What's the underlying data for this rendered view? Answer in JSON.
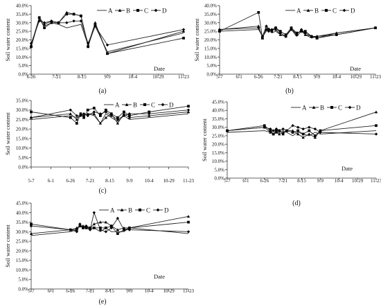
{
  "chart_data": [
    {
      "panel_label": "(a)",
      "type": "line",
      "ylabel": "Soil water content",
      "xlabel": "Date",
      "yticks": [
        "0.0%",
        "5.0%",
        "10.0%",
        "15.0%",
        "20.0%",
        "25.0%",
        "30.0%",
        "35.0%",
        "40.0%"
      ],
      "ylim": [
        0,
        40
      ],
      "x_tick_labels": [
        "6-26",
        "7-21",
        "8-15",
        "9-9",
        "10-4",
        "10-29",
        "11-23"
      ],
      "x_tick_days": [
        0,
        25,
        50,
        75,
        100,
        125,
        150
      ],
      "legend": [
        "A",
        "B",
        "C",
        "D"
      ],
      "series": [
        {
          "name": "A",
          "marker": "none",
          "x": [
            0,
            8,
            13,
            20,
            27,
            35,
            42,
            49,
            56,
            63,
            75,
            150
          ],
          "y": [
            16,
            32,
            28,
            30,
            29,
            27,
            28,
            29,
            17,
            28,
            13,
            24
          ]
        },
        {
          "name": "B",
          "marker": "triangle",
          "x": [
            0,
            8,
            13,
            20,
            27,
            35,
            42,
            49,
            56,
            63,
            75,
            150
          ],
          "y": [
            17,
            33,
            29,
            31,
            30,
            36,
            35,
            34,
            17,
            30,
            12,
            25
          ]
        },
        {
          "name": "C",
          "marker": "square",
          "x": [
            0,
            8,
            13,
            20,
            27,
            35,
            42,
            49,
            56,
            63,
            75,
            150
          ],
          "y": [
            16,
            33,
            27,
            30,
            30,
            35,
            35,
            34,
            16,
            29,
            12,
            21
          ]
        },
        {
          "name": "D",
          "marker": "diamond",
          "x": [
            0,
            8,
            13,
            20,
            27,
            35,
            42,
            49,
            56,
            63,
            75,
            150
          ],
          "y": [
            18,
            31,
            30,
            31,
            30,
            30,
            31,
            31,
            18,
            28,
            17,
            26
          ]
        }
      ]
    },
    {
      "panel_label": "(b)",
      "type": "line",
      "ylabel": "Soil water content",
      "xlabel": "Date",
      "yticks": [
        "0.0%",
        "5.0%",
        "10.0%",
        "15.0%",
        "20.0%",
        "25.0%",
        "30.0%",
        "35.0%",
        "40.0%"
      ],
      "ylim": [
        0,
        40
      ],
      "x_tick_labels": [
        "5-7",
        "6-1",
        "6-26",
        "7-21",
        "8-15",
        "9-9",
        "10-4",
        "10-29",
        "11-23"
      ],
      "x_tick_days": [
        0,
        25,
        50,
        75,
        100,
        125,
        150,
        175,
        200
      ],
      "legend": [
        "A",
        "B",
        "C",
        "D"
      ],
      "series": [
        {
          "name": "A",
          "marker": "none",
          "x": [
            0,
            50,
            55,
            60,
            63,
            67,
            72,
            78,
            85,
            92,
            99,
            105,
            110,
            118,
            125,
            150,
            200
          ],
          "y": [
            25,
            26,
            22,
            25,
            27,
            24,
            25,
            23,
            22,
            26,
            22,
            25,
            23,
            21,
            22,
            24,
            27
          ]
        },
        {
          "name": "B",
          "marker": "triangle",
          "x": [
            0,
            50,
            55,
            60,
            63,
            67,
            72,
            78,
            85,
            92,
            99,
            105,
            110,
            118,
            125,
            150,
            200
          ],
          "y": [
            26,
            28,
            21,
            28,
            26,
            26,
            26,
            23,
            22,
            27,
            23,
            26,
            23,
            22,
            21,
            24,
            27
          ]
        },
        {
          "name": "C",
          "marker": "square",
          "x": [
            0,
            50,
            55,
            60,
            63,
            67,
            72,
            78,
            85,
            92,
            99,
            105,
            110,
            118,
            125,
            150,
            200
          ],
          "y": [
            25,
            36,
            21,
            26,
            26,
            25,
            27,
            25,
            23,
            27,
            24,
            25,
            25,
            22,
            21,
            23,
            27
          ]
        },
        {
          "name": "D",
          "marker": "diamond",
          "x": [
            0,
            50,
            55,
            60,
            63,
            67,
            72,
            78,
            85,
            92,
            99,
            105,
            110,
            118,
            125,
            150,
            200
          ],
          "y": [
            26,
            27,
            22,
            28,
            25,
            26,
            27,
            24,
            22,
            26,
            23,
            26,
            24,
            22,
            22,
            23,
            27
          ]
        }
      ]
    },
    {
      "panel_label": "(c)",
      "type": "line",
      "ylabel": "Soil water content",
      "xlabel": "",
      "yticks": [
        "0.0%",
        "5.0%",
        "10.0%",
        "15.0%",
        "20.0%",
        "25.0%",
        "30.0%",
        "35.0%"
      ],
      "ylim": [
        0,
        35
      ],
      "x_tick_labels": [
        "5-7",
        "6-1",
        "6-26",
        "7-21",
        "8-15",
        "9-9",
        "10-4",
        "10-29",
        "11-23"
      ],
      "x_tick_days": [
        0,
        25,
        50,
        75,
        100,
        125,
        150,
        175,
        200
      ],
      "legend": [
        "A",
        "B",
        "C",
        "D"
      ],
      "series": [
        {
          "name": "A",
          "marker": "none",
          "x": [
            0,
            50,
            58,
            63,
            67,
            72,
            80,
            88,
            95,
            102,
            110,
            118,
            125,
            150,
            200
          ],
          "y": [
            25,
            27,
            26,
            27,
            27,
            28,
            27,
            23,
            28,
            26,
            24,
            27,
            25,
            26,
            28
          ]
        },
        {
          "name": "B",
          "marker": "triangle",
          "x": [
            0,
            50,
            58,
            63,
            67,
            72,
            80,
            88,
            95,
            102,
            110,
            118,
            125,
            150,
            200
          ],
          "y": [
            26,
            28,
            25,
            28,
            27,
            28,
            28,
            23,
            26,
            28,
            23,
            28,
            26,
            27,
            29
          ]
        },
        {
          "name": "C",
          "marker": "square",
          "x": [
            0,
            50,
            58,
            63,
            67,
            72,
            80,
            88,
            95,
            102,
            110,
            118,
            125,
            150,
            200
          ],
          "y": [
            29,
            26,
            23,
            28,
            26,
            30,
            31,
            27,
            30,
            28,
            26,
            29,
            27,
            29,
            32
          ]
        },
        {
          "name": "D",
          "marker": "diamond",
          "x": [
            0,
            50,
            58,
            63,
            67,
            72,
            80,
            88,
            95,
            102,
            110,
            118,
            125,
            150,
            200
          ],
          "y": [
            26,
            30,
            27,
            27,
            28,
            27,
            29,
            28,
            29,
            27,
            25,
            27,
            28,
            28,
            30
          ]
        }
      ]
    },
    {
      "panel_label": "(d)",
      "type": "line",
      "ylabel": "Soil water content",
      "xlabel": "Date",
      "yticks": [
        "0.0%",
        "5.0%",
        "10.0%",
        "15.0%",
        "20.0%",
        "25.0%",
        "30.0%",
        "35.0%",
        "40.0%",
        "45.0%"
      ],
      "ylim": [
        0,
        45
      ],
      "x_tick_labels": [
        "5-7",
        "6-1",
        "6-26",
        "7-21",
        "8-15",
        "9-9",
        "10-4",
        "10-29",
        "11-23"
      ],
      "x_tick_days": [
        0,
        25,
        50,
        75,
        100,
        125,
        150,
        175,
        200
      ],
      "legend": [
        "A",
        "B",
        "C",
        "D"
      ],
      "series": [
        {
          "name": "A",
          "marker": "none",
          "x": [
            0,
            50,
            58,
            62,
            66,
            70,
            75,
            80,
            88,
            95,
            102,
            110,
            118,
            125,
            200
          ],
          "y": [
            27,
            28,
            27,
            28,
            27,
            27,
            28,
            27,
            25,
            27,
            26,
            25,
            27,
            26,
            28
          ]
        },
        {
          "name": "B",
          "marker": "triangle",
          "x": [
            0,
            50,
            58,
            62,
            66,
            70,
            75,
            80,
            88,
            95,
            102,
            110,
            118,
            125,
            200
          ],
          "y": [
            28,
            30,
            27,
            26,
            27,
            26,
            27,
            28,
            28,
            26,
            24,
            26,
            24,
            28,
            39
          ]
        },
        {
          "name": "C",
          "marker": "square",
          "x": [
            0,
            50,
            58,
            62,
            66,
            70,
            75,
            80,
            88,
            95,
            102,
            110,
            118,
            125,
            200
          ],
          "y": [
            28,
            31,
            28,
            26,
            28,
            28,
            26,
            28,
            27,
            28,
            26,
            28,
            25,
            28,
            31
          ]
        },
        {
          "name": "D",
          "marker": "diamond",
          "x": [
            0,
            50,
            58,
            62,
            66,
            70,
            75,
            80,
            88,
            95,
            102,
            110,
            118,
            125,
            200
          ],
          "y": [
            28,
            30,
            29,
            28,
            29,
            28,
            29,
            28,
            31,
            30,
            29,
            30,
            29,
            27,
            26
          ]
        }
      ]
    },
    {
      "panel_label": "(e)",
      "type": "line",
      "ylabel": "Soil water content",
      "xlabel": "Date",
      "yticks": [
        "0.0%",
        "5.0%",
        "10.0%",
        "15.0%",
        "20.0%",
        "25.0%",
        "30.0%",
        "35.0%",
        "40.0%",
        "45.0%"
      ],
      "ylim": [
        0,
        45
      ],
      "x_tick_labels": [
        "5-7",
        "6-1",
        "6-26",
        "7-21",
        "8-15",
        "9-9",
        "10-4",
        "10-29",
        "11-23"
      ],
      "x_tick_days": [
        0,
        25,
        50,
        75,
        100,
        125,
        150,
        175,
        200
      ],
      "legend": [
        "A",
        "B",
        "C",
        "D"
      ],
      "series": [
        {
          "name": "A",
          "marker": "none",
          "x": [
            0,
            50,
            58,
            62,
            66,
            70,
            75,
            80,
            88,
            95,
            102,
            110,
            118,
            125,
            200
          ],
          "y": [
            28,
            30,
            31,
            33,
            33,
            32,
            31,
            32,
            30,
            32,
            30,
            30,
            30,
            32,
            29
          ]
        },
        {
          "name": "B",
          "marker": "triangle",
          "x": [
            0,
            50,
            58,
            62,
            66,
            70,
            75,
            80,
            88,
            95,
            102,
            110,
            118,
            125,
            200
          ],
          "y": [
            29,
            31,
            32,
            33,
            33,
            33,
            32,
            34,
            35,
            35,
            33,
            31,
            32,
            32,
            38
          ]
        },
        {
          "name": "C",
          "marker": "square",
          "x": [
            0,
            50,
            58,
            62,
            66,
            70,
            75,
            80,
            88,
            95,
            102,
            110,
            118,
            125,
            200
          ],
          "y": [
            34,
            31,
            31,
            33,
            32,
            32,
            32,
            32,
            32,
            32,
            33,
            29,
            31,
            32,
            35
          ]
        },
        {
          "name": "D",
          "marker": "diamond",
          "x": [
            0,
            50,
            58,
            62,
            66,
            70,
            75,
            80,
            88,
            95,
            102,
            110,
            118,
            125,
            200
          ],
          "y": [
            33,
            31,
            30,
            34,
            32,
            33,
            31,
            40,
            31,
            30,
            32,
            37,
            31,
            31,
            30
          ]
        }
      ]
    }
  ]
}
